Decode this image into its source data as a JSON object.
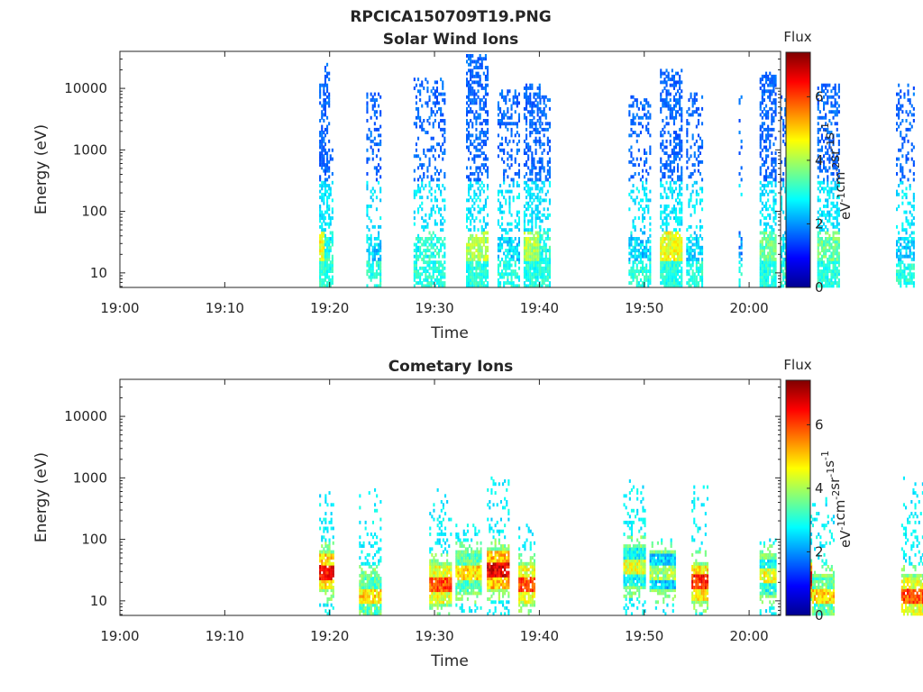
{
  "figure": {
    "title": "RPCICA150709T19.PNG"
  },
  "colorbar": {
    "label": "Flux",
    "unit_parts": [
      "eV",
      "-1",
      "cm",
      "-2",
      "sr",
      "-1",
      "s",
      "-1"
    ],
    "ticks": [
      0,
      2,
      4,
      6
    ],
    "ticks_text": [
      "0",
      "2",
      "4",
      "6"
    ],
    "range": [
      0,
      7.4
    ],
    "colormap": "jet"
  },
  "chart_data": [
    {
      "type": "heatmap",
      "title": "Solar Wind Ions",
      "xlabel": "Time",
      "ylabel": "Energy (eV)",
      "yscale": "log",
      "ylim": [
        5.8,
        40000
      ],
      "yticks": [
        10,
        100,
        1000,
        10000
      ],
      "yticks_text": [
        "10",
        "100",
        "1000",
        "10000"
      ],
      "xlim": [
        "19:00",
        "20:03"
      ],
      "xticks": [
        "19:00",
        "19:10",
        "19:20",
        "19:30",
        "19:40",
        "19:50",
        "20:00"
      ],
      "zlabel": "Flux",
      "zrange": [
        0,
        7.4
      ],
      "bursts": [
        {
          "t_start": 19.0,
          "t_end": 19.5,
          "e_max": 12000,
          "flux_high": 4.5,
          "density": 0.75
        },
        {
          "t_start": 19.5,
          "t_end": 19.9,
          "e_max": 25000,
          "flux_high": 3.0,
          "density": 0.55
        },
        {
          "t_start": 20.0,
          "t_end": 20.2,
          "e_max": 1000,
          "flux_high": 2.8,
          "density": 0.3
        },
        {
          "t_start": 23.5,
          "t_end": 24.8,
          "e_max": 9000,
          "flux_high": 2.5,
          "density": 0.35
        },
        {
          "t_start": 28.0,
          "t_end": 31.0,
          "e_max": 15000,
          "flux_high": 3.0,
          "density": 0.35
        },
        {
          "t_start": 33.0,
          "t_end": 35.0,
          "e_max": 35000,
          "flux_high": 4.0,
          "density": 0.55
        },
        {
          "t_start": 36.0,
          "t_end": 38.0,
          "e_max": 10000,
          "flux_high": 2.5,
          "density": 0.35
        },
        {
          "t_start": 38.5,
          "t_end": 40.0,
          "e_max": 12000,
          "flux_high": 4.0,
          "density": 0.6
        },
        {
          "t_start": 40.0,
          "t_end": 41.0,
          "e_max": 8000,
          "flux_high": 3.0,
          "density": 0.5
        },
        {
          "t_start": 48.5,
          "t_end": 50.5,
          "e_max": 8000,
          "flux_high": 2.5,
          "density": 0.35
        },
        {
          "t_start": 51.5,
          "t_end": 53.5,
          "e_max": 20000,
          "flux_high": 4.5,
          "density": 0.6
        },
        {
          "t_start": 54.0,
          "t_end": 55.5,
          "e_max": 9000,
          "flux_high": 2.5,
          "density": 0.35
        },
        {
          "t_start": 59.0,
          "t_end": 59.2,
          "e_max": 10000,
          "flux_high": 2.0,
          "density": 0.2
        },
        {
          "t_start": 61.0,
          "t_end": 62.5,
          "e_max": 18000,
          "flux_high": 3.5,
          "density": 0.6
        },
        {
          "t_start": 63.0,
          "t_end": 65.0,
          "e_max": 8000,
          "flux_high": 2.5,
          "density": 0.35
        },
        {
          "t_start": 66.5,
          "t_end": 68.5,
          "e_max": 12000,
          "flux_high": 3.5,
          "density": 0.55
        },
        {
          "t_start": 74.0,
          "t_end": 75.8,
          "e_max": 12000,
          "flux_high": 2.5,
          "density": 0.35
        }
      ]
    },
    {
      "type": "heatmap",
      "title": "Cometary Ions",
      "xlabel": "Time",
      "ylabel": "Energy (eV)",
      "yscale": "log",
      "ylim": [
        5.8,
        40000
      ],
      "yticks": [
        10,
        100,
        1000,
        10000
      ],
      "yticks_text": [
        "10",
        "100",
        "1000",
        "10000"
      ],
      "xlim": [
        "19:00",
        "20:03"
      ],
      "xticks": [
        "19:00",
        "19:10",
        "19:20",
        "19:30",
        "19:40",
        "19:50",
        "20:00"
      ],
      "zlabel": "Flux",
      "zrange": [
        0,
        7.4
      ],
      "bursts": [
        {
          "t_start": 19.0,
          "t_end": 20.3,
          "e_max": 600,
          "e_peak": 30,
          "flux_peak": 7.0,
          "density": 0.6
        },
        {
          "t_start": 22.8,
          "t_end": 24.8,
          "e_max": 650,
          "e_peak": 12,
          "flux_peak": 5.5,
          "density": 0.45
        },
        {
          "t_start": 29.5,
          "t_end": 31.5,
          "e_max": 700,
          "e_peak": 18,
          "flux_peak": 6.5,
          "density": 0.5
        },
        {
          "t_start": 32.0,
          "t_end": 34.5,
          "e_max": 170,
          "e_peak": 28,
          "flux_peak": 5.5,
          "density": 0.5
        },
        {
          "t_start": 35.0,
          "t_end": 37.0,
          "e_max": 1000,
          "e_peak": 32,
          "flux_peak": 7.2,
          "density": 0.55
        },
        {
          "t_start": 38.0,
          "t_end": 39.5,
          "e_max": 180,
          "e_peak": 18,
          "flux_peak": 6.5,
          "density": 0.45
        },
        {
          "t_start": 48.0,
          "t_end": 50.0,
          "e_max": 900,
          "e_peak": 35,
          "flux_peak": 5.0,
          "density": 0.5
        },
        {
          "t_start": 50.5,
          "t_end": 53.0,
          "e_max": 100,
          "e_peak": 30,
          "flux_peak": 4.5,
          "density": 0.45
        },
        {
          "t_start": 54.5,
          "t_end": 56.0,
          "e_max": 900,
          "e_peak": 20,
          "flux_peak": 6.8,
          "density": 0.5
        },
        {
          "t_start": 61.0,
          "t_end": 62.5,
          "e_max": 100,
          "e_peak": 25,
          "flux_peak": 5.0,
          "density": 0.5
        },
        {
          "t_start": 63.5,
          "t_end": 66.0,
          "e_max": 900,
          "e_peak": 22,
          "flux_peak": 7.3,
          "density": 0.6
        },
        {
          "t_start": 66.0,
          "t_end": 68.0,
          "e_max": 500,
          "e_peak": 12,
          "flux_peak": 5.5,
          "density": 0.45
        },
        {
          "t_start": 74.5,
          "t_end": 76.5,
          "e_max": 1000,
          "e_peak": 12,
          "flux_peak": 6.5,
          "density": 0.5
        }
      ]
    }
  ]
}
